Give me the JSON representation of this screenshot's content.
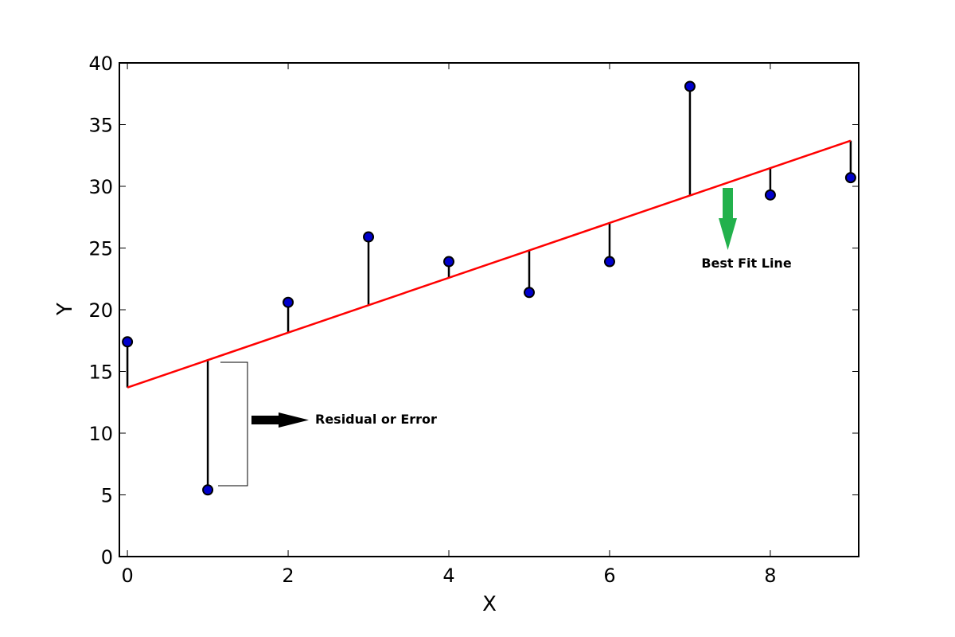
{
  "chart_data": {
    "type": "scatter",
    "title": "",
    "xlabel": "X",
    "ylabel": "Y",
    "xlim": [
      -0.1,
      9.1
    ],
    "ylim": [
      0,
      40
    ],
    "xticks": [
      0,
      2,
      4,
      6,
      8
    ],
    "yticks": [
      0,
      5,
      10,
      15,
      20,
      25,
      30,
      35,
      40
    ],
    "grid": false,
    "series": [
      {
        "kind": "points",
        "x": [
          0,
          1,
          2,
          3,
          4,
          5,
          6,
          7,
          8,
          9
        ],
        "y": [
          17.4,
          5.4,
          20.6,
          25.9,
          23.9,
          21.4,
          23.9,
          38.1,
          29.3,
          30.7
        ],
        "color": "#0000cc"
      },
      {
        "kind": "line",
        "x": [
          0,
          9
        ],
        "y": [
          13.7,
          33.7
        ],
        "color": "#ff0000"
      }
    ],
    "residuals": true,
    "annotations": [
      {
        "text": "Residual or Error",
        "arrow_color": "#000000"
      },
      {
        "text": "Best Fit Line",
        "arrow_color": "#22b14c"
      }
    ]
  }
}
